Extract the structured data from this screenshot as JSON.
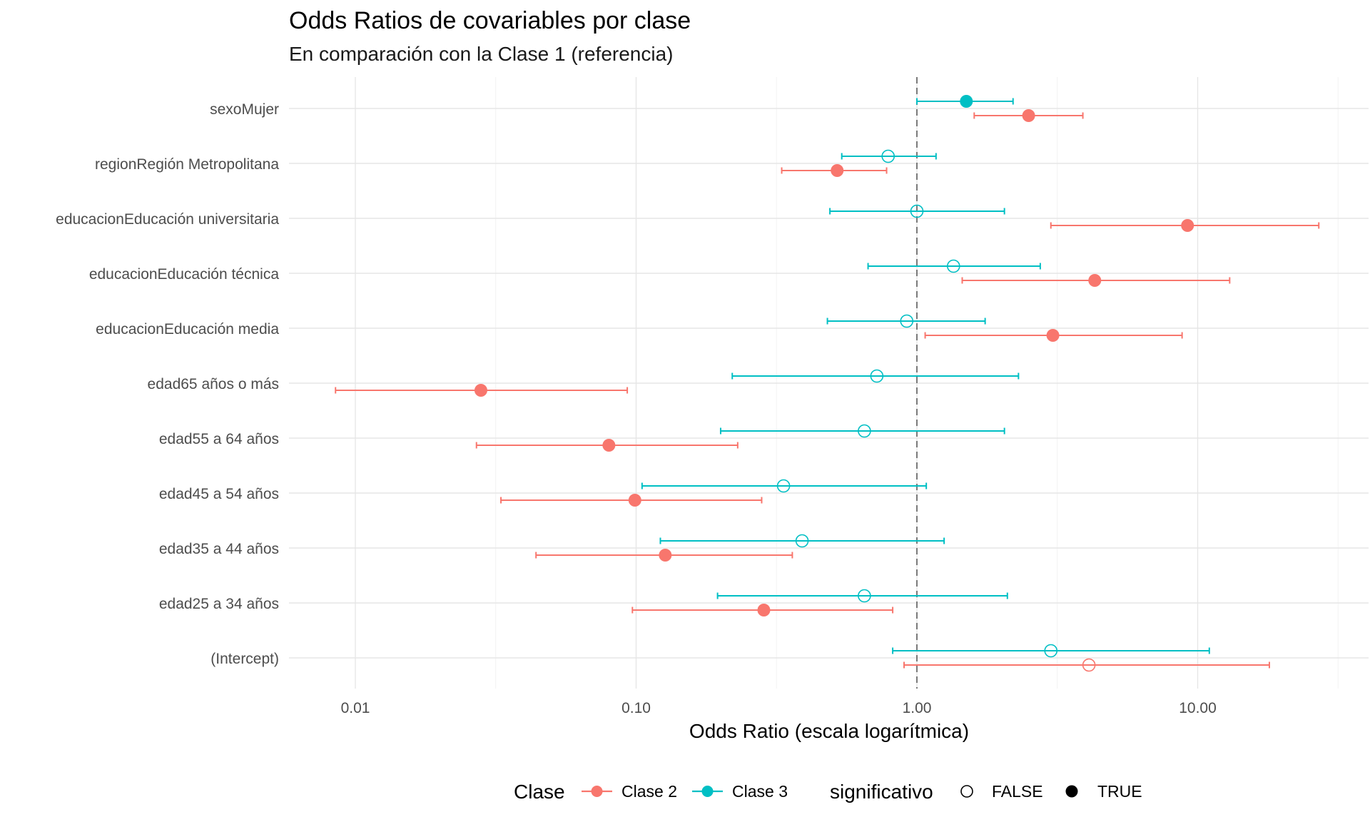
{
  "chart_data": {
    "type": "scatter",
    "title": "Odds Ratios de covariables por clase",
    "subtitle": "En comparación con la Clase 1 (referencia)",
    "xlabel": "Odds Ratio (escala logarítmica)",
    "ylabel": "",
    "x_scale": "log10",
    "xlim": [
      0.006,
      35
    ],
    "x_ticks": [
      0.01,
      0.1,
      1,
      10
    ],
    "x_tick_labels": [
      "0.01",
      "0.10",
      "1.00",
      "10.00"
    ],
    "reference_line": 1,
    "grid": true,
    "legend_position": "bottom",
    "categories": [
      "sexoMujer",
      "regionRegión Metropolitana",
      "educacionEducación universitaria",
      "educacionEducación técnica",
      "educacionEducación media",
      "edad65 años o más",
      "edad55 a 64 años",
      "edad45 a 54 años",
      "edad35 a 44 años",
      "edad25 a 34 años",
      "(Intercept)"
    ],
    "legend": {
      "clase_title": "Clase",
      "significativo_title": "significativo",
      "false_label": "FALSE",
      "true_label": "TRUE"
    },
    "series": [
      {
        "name": "Clase 2",
        "color": "#F8766D",
        "points": [
          {
            "category": "sexoMujer",
            "or": 2.5,
            "low": 1.6,
            "high": 3.9,
            "sig": true
          },
          {
            "category": "regionRegión Metropolitana",
            "or": 0.52,
            "low": 0.33,
            "high": 0.78,
            "sig": true
          },
          {
            "category": "educacionEducación universitaria",
            "or": 9.2,
            "low": 3.0,
            "high": 27.0,
            "sig": true
          },
          {
            "category": "educacionEducación técnica",
            "or": 4.3,
            "low": 1.45,
            "high": 13.0,
            "sig": true
          },
          {
            "category": "educacionEducación media",
            "or": 3.05,
            "low": 1.07,
            "high": 8.8,
            "sig": true
          },
          {
            "category": "edad65 años o más",
            "or": 0.028,
            "low": 0.0085,
            "high": 0.093,
            "sig": true
          },
          {
            "category": "edad55 a 64 años",
            "or": 0.08,
            "low": 0.027,
            "high": 0.23,
            "sig": true
          },
          {
            "category": "edad45 a 54 años",
            "or": 0.099,
            "low": 0.033,
            "high": 0.28,
            "sig": true
          },
          {
            "category": "edad35 a 44 años",
            "or": 0.127,
            "low": 0.044,
            "high": 0.36,
            "sig": true
          },
          {
            "category": "edad25 a 34 años",
            "or": 0.285,
            "low": 0.097,
            "high": 0.82,
            "sig": true
          },
          {
            "category": "(Intercept)",
            "or": 4.1,
            "low": 0.9,
            "high": 18.0,
            "sig": false
          }
        ]
      },
      {
        "name": "Clase 3",
        "color": "#00BFC4",
        "points": [
          {
            "category": "sexoMujer",
            "or": 1.5,
            "low": 1.0,
            "high": 2.2,
            "sig": true
          },
          {
            "category": "regionRegión Metropolitana",
            "or": 0.79,
            "low": 0.54,
            "high": 1.17,
            "sig": false
          },
          {
            "category": "educacionEducación universitaria",
            "or": 1.0,
            "low": 0.49,
            "high": 2.05,
            "sig": false
          },
          {
            "category": "educacionEducación técnica",
            "or": 1.35,
            "low": 0.67,
            "high": 2.75,
            "sig": false
          },
          {
            "category": "educacionEducación media",
            "or": 0.92,
            "low": 0.48,
            "high": 1.75,
            "sig": false
          },
          {
            "category": "edad65 años o más",
            "or": 0.72,
            "low": 0.22,
            "high": 2.3,
            "sig": false
          },
          {
            "category": "edad55 a 64 años",
            "or": 0.65,
            "low": 0.2,
            "high": 2.05,
            "sig": false
          },
          {
            "category": "edad45 a 54 años",
            "or": 0.335,
            "low": 0.105,
            "high": 1.08,
            "sig": false
          },
          {
            "category": "edad35 a 44 años",
            "or": 0.39,
            "low": 0.122,
            "high": 1.25,
            "sig": false
          },
          {
            "category": "edad25 a 34 años",
            "or": 0.65,
            "low": 0.195,
            "high": 2.1,
            "sig": false
          },
          {
            "category": "(Intercept)",
            "or": 3.0,
            "low": 0.82,
            "high": 11.0,
            "sig": false
          }
        ]
      }
    ]
  }
}
